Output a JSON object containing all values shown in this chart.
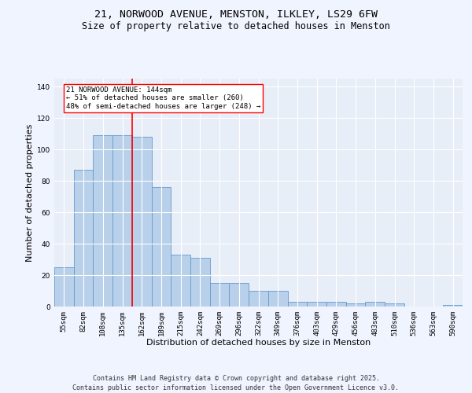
{
  "title": "21, NORWOOD AVENUE, MENSTON, ILKLEY, LS29 6FW",
  "subtitle": "Size of property relative to detached houses in Menston",
  "xlabel": "Distribution of detached houses by size in Menston",
  "ylabel": "Number of detached properties",
  "categories": [
    "55sqm",
    "82sqm",
    "108sqm",
    "135sqm",
    "162sqm",
    "189sqm",
    "215sqm",
    "242sqm",
    "269sqm",
    "296sqm",
    "322sqm",
    "349sqm",
    "376sqm",
    "403sqm",
    "429sqm",
    "456sqm",
    "483sqm",
    "510sqm",
    "536sqm",
    "563sqm",
    "590sqm"
  ],
  "values": [
    25,
    87,
    109,
    109,
    108,
    76,
    33,
    31,
    15,
    15,
    10,
    10,
    3,
    3,
    3,
    2,
    3,
    2,
    0,
    0,
    1
  ],
  "bar_color": "#b8d0ea",
  "bar_edge_color": "#6699cc",
  "background_color": "#e8eef8",
  "grid_color": "#ffffff",
  "fig_background": "#f0f4ff",
  "redline_x": 3.5,
  "annotation_line1": "21 NORWOOD AVENUE: 144sqm",
  "annotation_line2": "← 51% of detached houses are smaller (260)",
  "annotation_line3": "48% of semi-detached houses are larger (248) →",
  "ylim": [
    0,
    145
  ],
  "yticks": [
    0,
    20,
    40,
    60,
    80,
    100,
    120,
    140
  ],
  "footer1": "Contains HM Land Registry data © Crown copyright and database right 2025.",
  "footer2": "Contains public sector information licensed under the Open Government Licence v3.0.",
  "title_fontsize": 9.5,
  "subtitle_fontsize": 8.5,
  "axis_label_fontsize": 8,
  "tick_fontsize": 6.5,
  "annotation_fontsize": 6.5,
  "footer_fontsize": 6
}
